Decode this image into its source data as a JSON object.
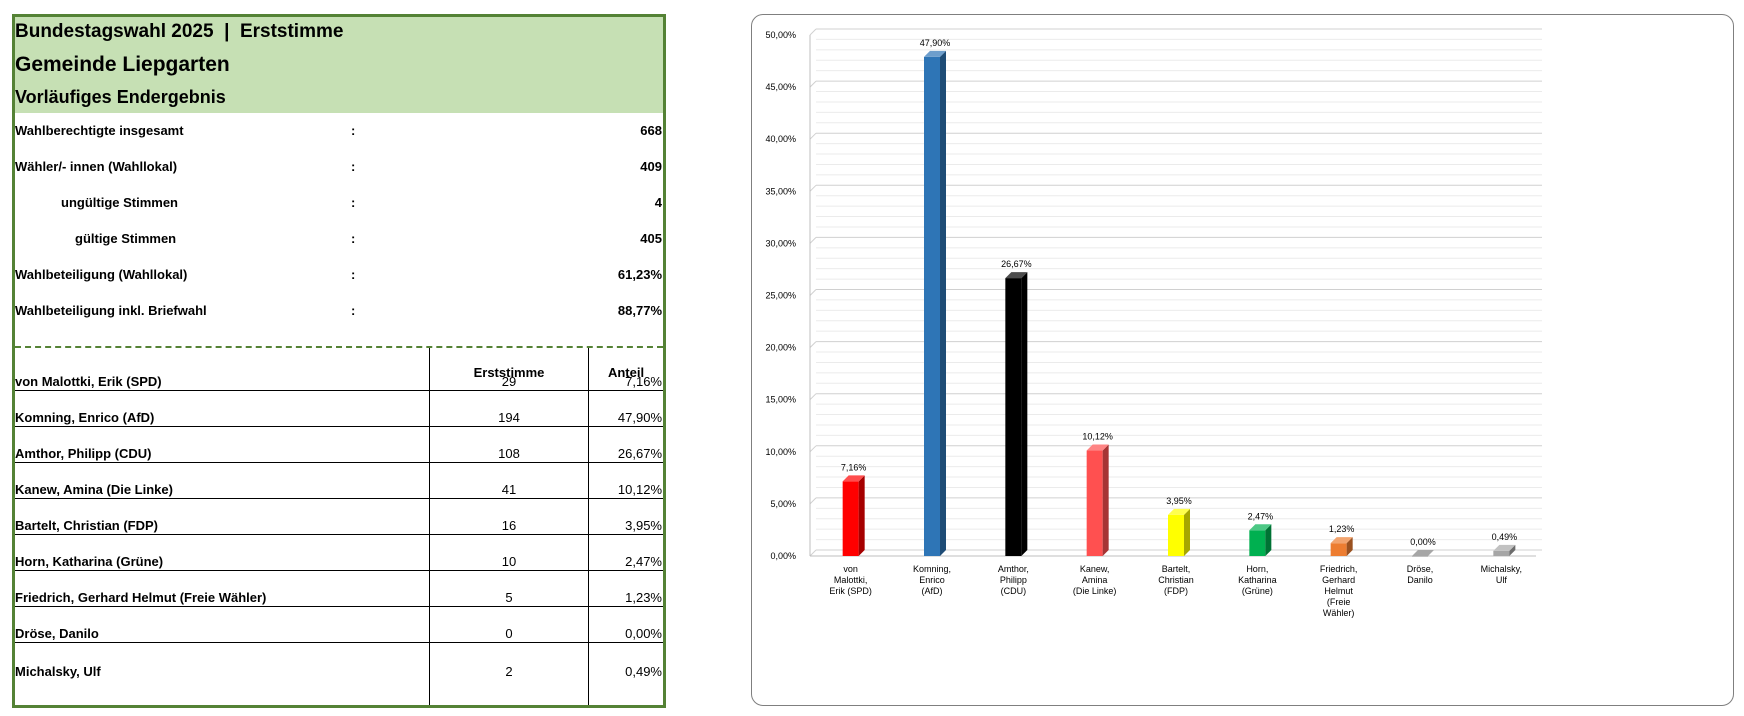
{
  "panel": {
    "title_line_1": "Bundestagswahl 2025  |  Erststimme",
    "title_line_2": "Gemeinde Liepgarten",
    "title_line_3": "Vorläufiges Endergebnis"
  },
  "stats": [
    {
      "label": "Wahlberechtigte insgesamt",
      "colon": ":",
      "value": "668"
    },
    {
      "label": "Wähler/- innen (Wahllokal)",
      "colon": ":",
      "value": "409"
    },
    {
      "label": "ungültige Stimmen",
      "colon": ":",
      "value": "4"
    },
    {
      "label": "gültige Stimmen",
      "colon": ":",
      "value": "405"
    },
    {
      "label": "Wahlbeteiligung (Wahllokal)",
      "colon": ":",
      "value": "61,23%"
    },
    {
      "label": "Wahlbeteiligung inkl. Briefwahl",
      "colon": ":",
      "value": "88,77%"
    }
  ],
  "table": {
    "header_votes": "Erststimme",
    "header_share": "Anteil",
    "rows": [
      {
        "name": "von Malottki, Erik (SPD)",
        "votes": "29",
        "share": "7,16%"
      },
      {
        "name": "Komning, Enrico (AfD)",
        "votes": "194",
        "share": "47,90%"
      },
      {
        "name": "Amthor, Philipp (CDU)",
        "votes": "108",
        "share": "26,67%"
      },
      {
        "name": "Kanew, Amina (Die Linke)",
        "votes": "41",
        "share": "10,12%"
      },
      {
        "name": "Bartelt, Christian (FDP)",
        "votes": "16",
        "share": "3,95%"
      },
      {
        "name": "Horn, Katharina (Grüne)",
        "votes": "10",
        "share": "2,47%"
      },
      {
        "name": "Friedrich, Gerhard Helmut (Freie Wähler)",
        "votes": "5",
        "share": "1,23%"
      },
      {
        "name": "Dröse, Danilo",
        "votes": "0",
        "share": "0,00%"
      },
      {
        "name": "Michalsky, Ulf",
        "votes": "2",
        "share": "0,49%"
      }
    ]
  },
  "chart_data": {
    "type": "bar",
    "categories": [
      "von Malottki, Erik (SPD)",
      "Komning, Enrico (AfD)",
      "Amthor, Philipp (CDU)",
      "Kanew, Amina (Die Linke)",
      "Bartelt, Christian (FDP)",
      "Horn, Katharina (Grüne)",
      "Friedrich, Gerhard Helmut (Freie Wähler)",
      "Dröse, Danilo",
      "Michalsky, Ulf"
    ],
    "category_label_lines": [
      [
        "von",
        "Malottki,",
        "Erik (SPD)"
      ],
      [
        "Komning,",
        "Enrico",
        "(AfD)"
      ],
      [
        "Amthor,",
        "Philipp",
        "(CDU)"
      ],
      [
        "Kanew,",
        "Amina",
        "(Die Linke)"
      ],
      [
        "Bartelt,",
        "Christian",
        "(FDP)"
      ],
      [
        "Horn,",
        "Katharina",
        "(Grüne)"
      ],
      [
        "Friedrich,",
        "Gerhard",
        "Helmut",
        "(Freie",
        "Wähler)"
      ],
      [
        "Dröse,",
        "Danilo"
      ],
      [
        "Michalsky,",
        "Ulf"
      ]
    ],
    "values": [
      7.16,
      47.9,
      26.67,
      10.12,
      3.95,
      2.47,
      1.23,
      0.0,
      0.49
    ],
    "data_labels": [
      "7,16%",
      "47,90%",
      "26,67%",
      "10,12%",
      "3,95%",
      "2,47%",
      "1,23%",
      "0,00%",
      "0,49%"
    ],
    "colors": [
      "#ff0000",
      "#2e75b6",
      "#000000",
      "#ff5050",
      "#ffff00",
      "#00b050",
      "#ed7d31",
      "#808080",
      "#a6a6a6"
    ],
    "ylim": [
      0,
      50
    ],
    "yticks": [
      0,
      5,
      10,
      15,
      20,
      25,
      30,
      35,
      40,
      45,
      50
    ],
    "ytick_labels": [
      "0,00%",
      "5,00%",
      "10,00%",
      "15,00%",
      "20,00%",
      "25,00%",
      "30,00%",
      "35,00%",
      "40,00%",
      "45,00%",
      "50,00%"
    ],
    "minor_grid_step": 1,
    "grid": true,
    "legend": "none",
    "style": "3d-column"
  }
}
